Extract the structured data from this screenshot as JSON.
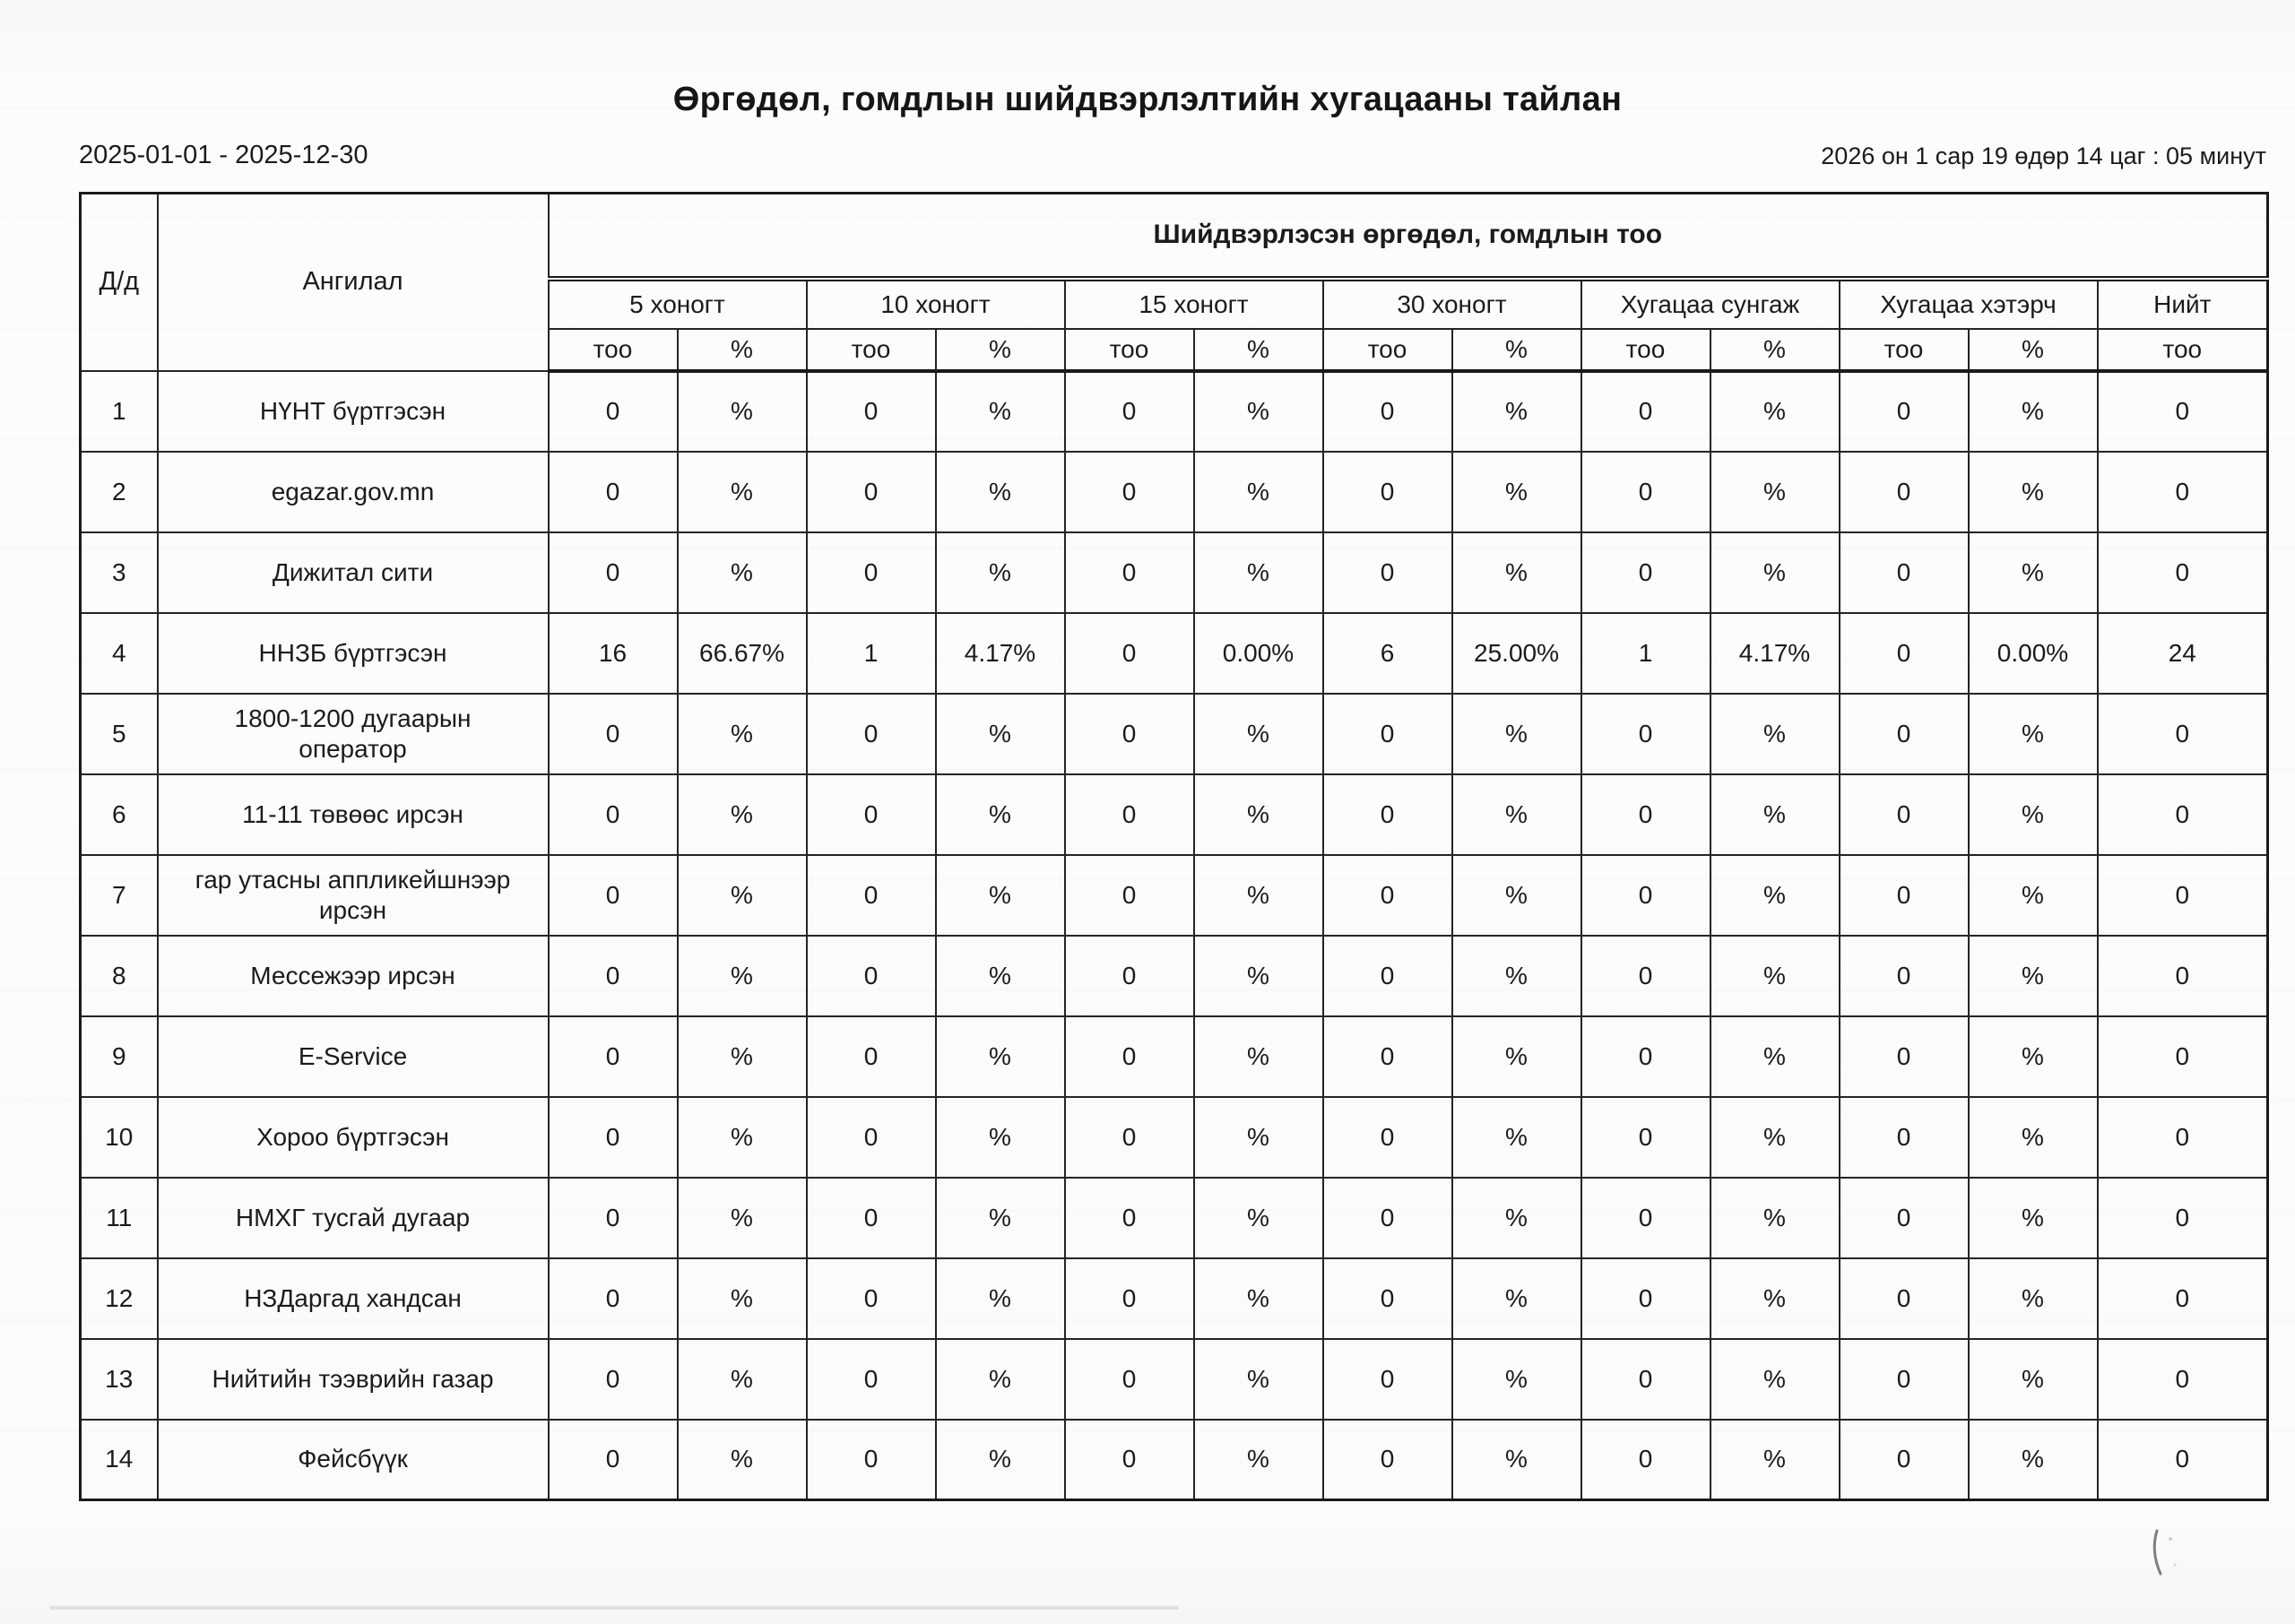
{
  "page": {
    "title": "Өргөдөл, гомдлын шийдвэрлэлтийн хугацааны тайлан",
    "date_range": "2025-01-01 - 2025-12-30",
    "generated_at": "2026 он 1 сар 19 өдөр 14 цаг : 05 минут"
  },
  "table": {
    "col_index_label": "Д/д",
    "col_category_label": "Ангилал",
    "group_header": "Шийдвэрлэсэн өргөдөл, гомдлын тоо",
    "period_groups": [
      {
        "label": "5 хоногт"
      },
      {
        "label": "10 хоногт"
      },
      {
        "label": "15 хоногт"
      },
      {
        "label": "30 хоногт"
      },
      {
        "label": "Хугацаа сунгаж"
      },
      {
        "label": "Хугацаа хэтэрч"
      }
    ],
    "sub_headers": {
      "count": "тоо",
      "percent": "%"
    },
    "total_group_label": "Нийт",
    "total_sub_label": "тоо",
    "rows": [
      {
        "no": "1",
        "category": "НҮНТ бүртгэсэн",
        "cells": [
          "0",
          "%",
          "0",
          "%",
          "0",
          "%",
          "0",
          "%",
          "0",
          "%",
          "0",
          "%",
          "0"
        ]
      },
      {
        "no": "2",
        "category": "egazar.gov.mn",
        "cells": [
          "0",
          "%",
          "0",
          "%",
          "0",
          "%",
          "0",
          "%",
          "0",
          "%",
          "0",
          "%",
          "0"
        ]
      },
      {
        "no": "3",
        "category": "Дижитал сити",
        "cells": [
          "0",
          "%",
          "0",
          "%",
          "0",
          "%",
          "0",
          "%",
          "0",
          "%",
          "0",
          "%",
          "0"
        ]
      },
      {
        "no": "4",
        "category": "ННЗБ бүртгэсэн",
        "cells": [
          "16",
          "66.67%",
          "1",
          "4.17%",
          "0",
          "0.00%",
          "6",
          "25.00%",
          "1",
          "4.17%",
          "0",
          "0.00%",
          "24"
        ]
      },
      {
        "no": "5",
        "category": "1800-1200 дугаарын оператор",
        "cells": [
          "0",
          "%",
          "0",
          "%",
          "0",
          "%",
          "0",
          "%",
          "0",
          "%",
          "0",
          "%",
          "0"
        ]
      },
      {
        "no": "6",
        "category": "11-11 төвөөс ирсэн",
        "cells": [
          "0",
          "%",
          "0",
          "%",
          "0",
          "%",
          "0",
          "%",
          "0",
          "%",
          "0",
          "%",
          "0"
        ]
      },
      {
        "no": "7",
        "category": "гар утасны аппликейшнээр ирсэн",
        "cells": [
          "0",
          "%",
          "0",
          "%",
          "0",
          "%",
          "0",
          "%",
          "0",
          "%",
          "0",
          "%",
          "0"
        ]
      },
      {
        "no": "8",
        "category": "Мессежээр ирсэн",
        "cells": [
          "0",
          "%",
          "0",
          "%",
          "0",
          "%",
          "0",
          "%",
          "0",
          "%",
          "0",
          "%",
          "0"
        ]
      },
      {
        "no": "9",
        "category": "E-Service",
        "cells": [
          "0",
          "%",
          "0",
          "%",
          "0",
          "%",
          "0",
          "%",
          "0",
          "%",
          "0",
          "%",
          "0"
        ]
      },
      {
        "no": "10",
        "category": "Хороо бүртгэсэн",
        "cells": [
          "0",
          "%",
          "0",
          "%",
          "0",
          "%",
          "0",
          "%",
          "0",
          "%",
          "0",
          "%",
          "0"
        ]
      },
      {
        "no": "11",
        "category": "НМХГ тусгай дугаар",
        "cells": [
          "0",
          "%",
          "0",
          "%",
          "0",
          "%",
          "0",
          "%",
          "0",
          "%",
          "0",
          "%",
          "0"
        ]
      },
      {
        "no": "12",
        "category": "НЗДаргад хандсан",
        "cells": [
          "0",
          "%",
          "0",
          "%",
          "0",
          "%",
          "0",
          "%",
          "0",
          "%",
          "0",
          "%",
          "0"
        ]
      },
      {
        "no": "13",
        "category": "Нийтийн тээврийн газар",
        "cells": [
          "0",
          "%",
          "0",
          "%",
          "0",
          "%",
          "0",
          "%",
          "0",
          "%",
          "0",
          "%",
          "0"
        ]
      },
      {
        "no": "14",
        "category": "Фейсбүүк",
        "cells": [
          "0",
          "%",
          "0",
          "%",
          "0",
          "%",
          "0",
          "%",
          "0",
          "%",
          "0",
          "%",
          "0"
        ]
      }
    ]
  }
}
